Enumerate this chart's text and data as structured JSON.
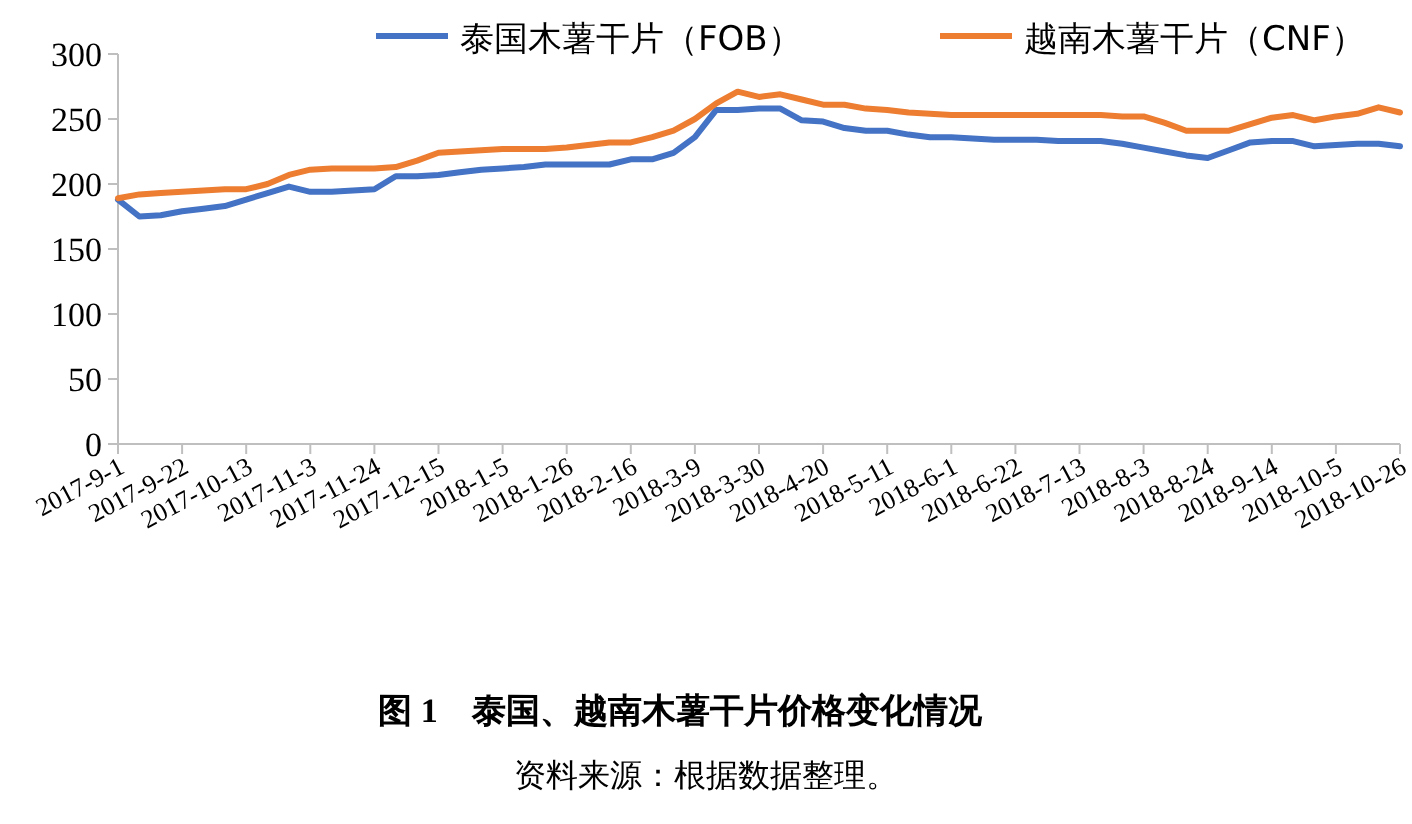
{
  "chart_data": {
    "type": "line",
    "title": "图 1　泰国、越南木薯干片价格变化情况",
    "annotations": [
      "资料来源：根据数据整理。"
    ],
    "categories": [
      "2017-9-1",
      null,
      null,
      "2017-9-22",
      null,
      null,
      "2017-10-13",
      null,
      null,
      "2017-11-3",
      null,
      null,
      "2017-11-24",
      null,
      null,
      "2017-12-15",
      null,
      null,
      "2018-1-5",
      null,
      null,
      "2018-1-26",
      null,
      null,
      "2018-2-16",
      null,
      null,
      "2018-3-9",
      null,
      null,
      "2018-3-30",
      null,
      null,
      "2018-4-20",
      null,
      null,
      "2018-5-11",
      null,
      null,
      "2018-6-1",
      null,
      null,
      "2018-6-22",
      null,
      null,
      "2018-7-13",
      null,
      null,
      "2018-8-3",
      null,
      null,
      "2018-8-24",
      null,
      null,
      "2018-9-14",
      null,
      null,
      "2018-10-5",
      null,
      null,
      "2018-10-26"
    ],
    "series": [
      {
        "name": "泰国木薯干片（FOB）",
        "color": "#4472c4",
        "values": [
          188,
          175,
          176,
          179,
          181,
          183,
          188,
          193,
          198,
          194,
          194,
          195,
          196,
          206,
          206,
          207,
          209,
          211,
          212,
          213,
          215,
          215,
          215,
          215,
          219,
          219,
          224,
          236,
          257,
          257,
          258,
          258,
          249,
          248,
          243,
          241,
          241,
          238,
          236,
          236,
          235,
          234,
          234,
          234,
          233,
          233,
          233,
          231,
          228,
          225,
          222,
          220,
          226,
          232,
          233,
          233,
          229,
          230,
          231,
          231,
          229
        ]
      },
      {
        "name": "越南木薯干片（CNF）",
        "color": "#ed7d31",
        "values": [
          189,
          192,
          193,
          194,
          195,
          196,
          196,
          200,
          207,
          211,
          212,
          212,
          212,
          213,
          218,
          224,
          225,
          226,
          227,
          227,
          227,
          228,
          230,
          232,
          232,
          236,
          241,
          250,
          262,
          271,
          267,
          269,
          265,
          261,
          261,
          258,
          257,
          255,
          254,
          253,
          253,
          253,
          253,
          253,
          253,
          253,
          253,
          252,
          252,
          247,
          241,
          241,
          241,
          246,
          251,
          253,
          249,
          252,
          254,
          259,
          255
        ]
      }
    ],
    "ylim": [
      0,
      300
    ],
    "yticks": [
      0,
      50,
      100,
      150,
      200,
      250,
      300
    ],
    "legend": "top",
    "grid": false,
    "marker": "none",
    "line_style": "solid"
  }
}
